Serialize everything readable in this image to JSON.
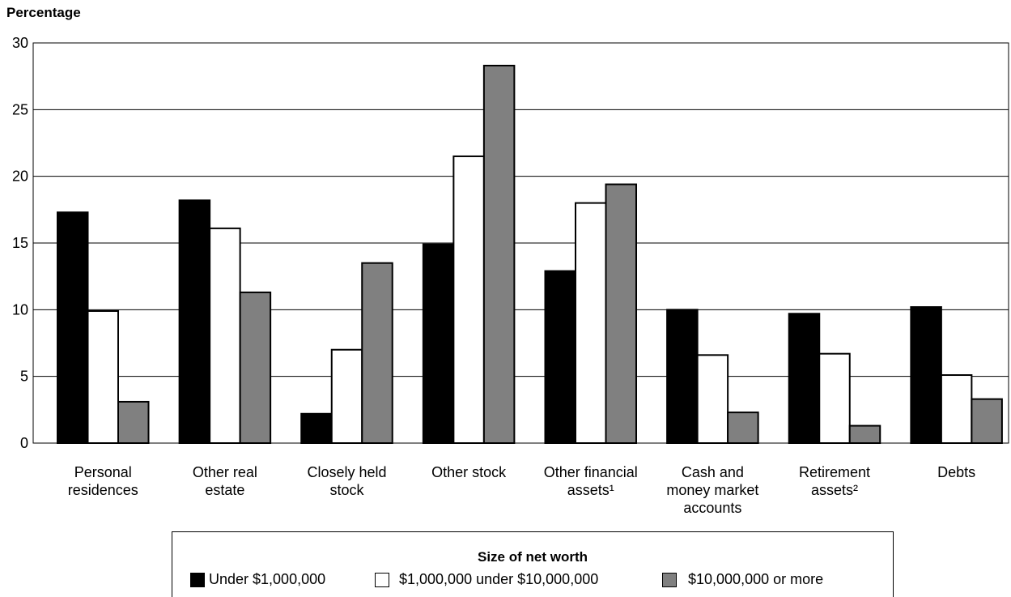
{
  "chart_data": {
    "type": "bar",
    "ylabel": "Percentage",
    "ylim": [
      0,
      30
    ],
    "yticks": [
      "0",
      "5",
      "10",
      "15",
      "20",
      "25",
      "30"
    ],
    "grid": true,
    "categories": [
      [
        "Personal",
        "residences"
      ],
      [
        "Other real",
        "estate"
      ],
      [
        "Closely held",
        "stock"
      ],
      [
        "Other stock"
      ],
      [
        "Other financial",
        "assets¹"
      ],
      [
        "Cash and",
        "money market",
        "accounts"
      ],
      [
        "Retirement",
        "assets²"
      ],
      [
        "Debts"
      ]
    ],
    "series": [
      {
        "name": "Under $1,000,000",
        "color": "#000000",
        "values": [
          17.3,
          18.2,
          2.2,
          14.9,
          12.9,
          10.0,
          9.7,
          10.2
        ]
      },
      {
        "name": "$1,000,000 under $10,000,000",
        "color": "#ffffff",
        "values": [
          9.9,
          16.1,
          7.0,
          21.5,
          18.0,
          6.6,
          6.7,
          5.1
        ]
      },
      {
        "name": "$10,000,000 or more",
        "color": "#808080",
        "values": [
          3.1,
          11.3,
          13.5,
          28.3,
          19.4,
          2.3,
          1.3,
          3.3
        ]
      }
    ],
    "legend": {
      "title": "Size of net worth",
      "placement": "bottom-center"
    }
  }
}
